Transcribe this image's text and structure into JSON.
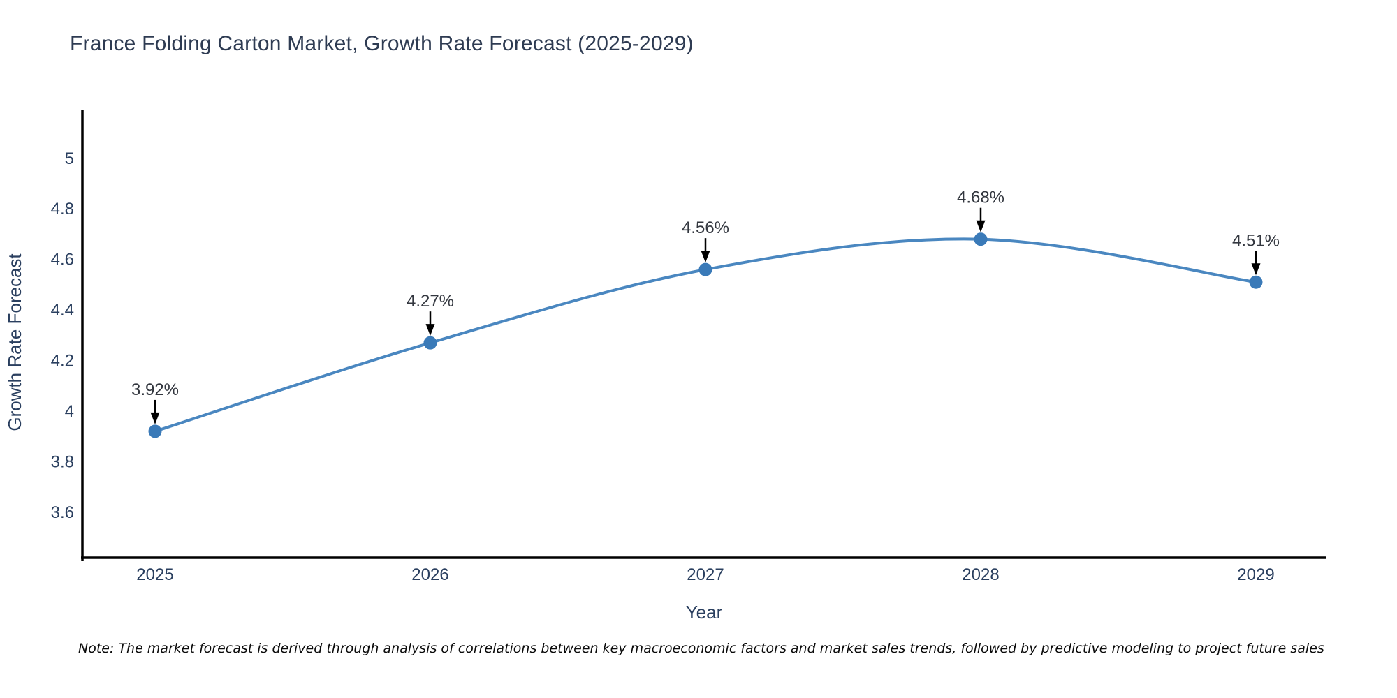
{
  "title": "France Folding Carton Market, Growth Rate Forecast (2025-2029)",
  "note": "Note: The market forecast is derived through analysis of correlations between key macroeconomic factors and market sales trends, followed by predictive modeling to project future sales",
  "chart_data": {
    "type": "line",
    "title": "France Folding Carton Market, Growth Rate Forecast (2025-2029)",
    "xlabel": "Year",
    "ylabel": "Growth Rate Forecast",
    "categories": [
      "2025",
      "2026",
      "2027",
      "2028",
      "2029"
    ],
    "series": [
      {
        "name": "Growth Rate Forecast",
        "values": [
          3.92,
          4.27,
          4.56,
          4.68,
          4.51
        ]
      }
    ],
    "point_labels": [
      "3.92%",
      "4.27%",
      "4.56%",
      "4.68%",
      "4.51%"
    ],
    "yticks": [
      "3.6",
      "3.8",
      "4",
      "4.2",
      "4.4",
      "4.6",
      "4.8",
      "5"
    ],
    "ylim": [
      3.42,
      5.19
    ],
    "grid": false,
    "legend": "none",
    "line_shape": "spline",
    "marker": "circle",
    "annotation_arrows": true,
    "colors": {
      "line": "#4a87c0",
      "marker": "#3a7ab8",
      "axis": "#000000",
      "tick_text": "#2a3f5f",
      "axis_title_text": "#2a3f5f",
      "annotation_text": "#33373f",
      "arrow": "#000000"
    }
  }
}
